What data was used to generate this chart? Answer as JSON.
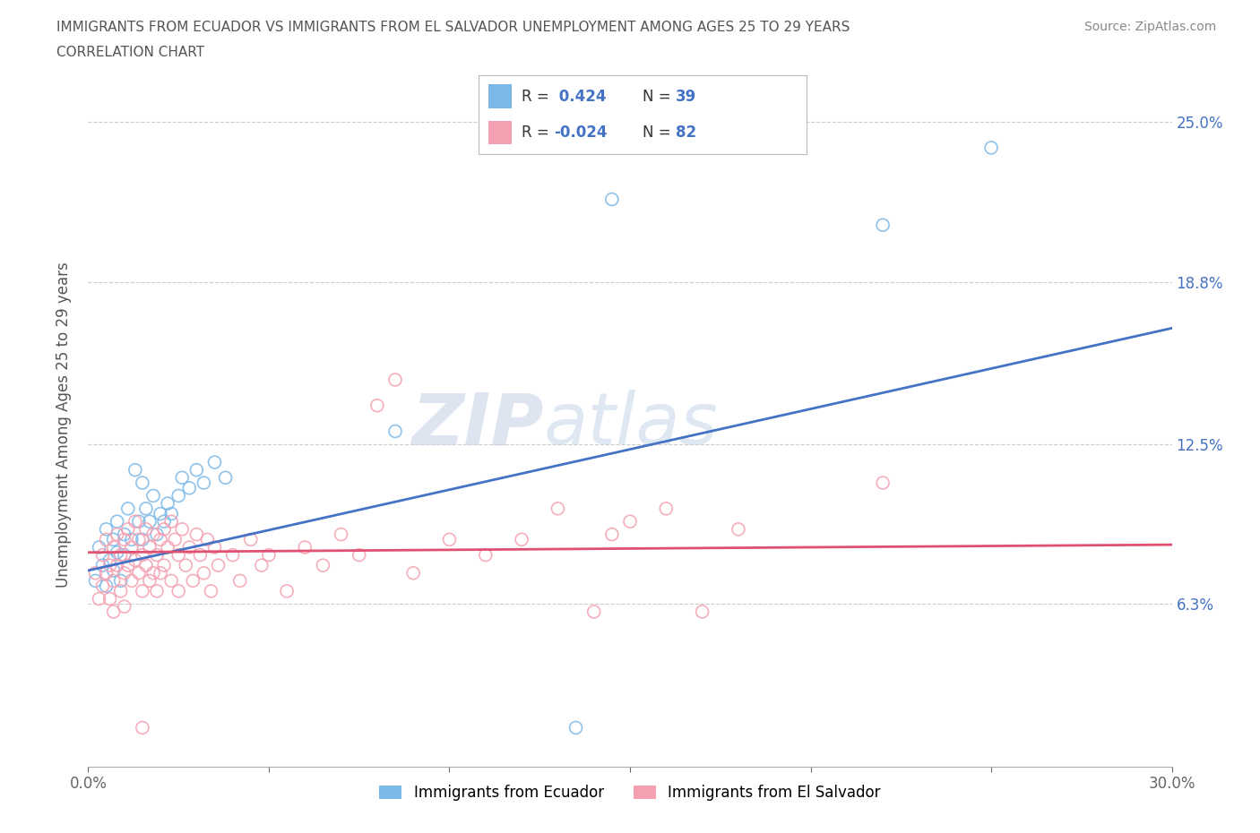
{
  "title_line1": "IMMIGRANTS FROM ECUADOR VS IMMIGRANTS FROM EL SALVADOR UNEMPLOYMENT AMONG AGES 25 TO 29 YEARS",
  "title_line2": "CORRELATION CHART",
  "source": "Source: ZipAtlas.com",
  "ylabel": "Unemployment Among Ages 25 to 29 years",
  "xlim": [
    0.0,
    0.3
  ],
  "ylim": [
    0.0,
    0.265
  ],
  "ytick_positions": [
    0.063,
    0.125,
    0.188,
    0.25
  ],
  "ytick_labels": [
    "6.3%",
    "12.5%",
    "18.8%",
    "25.0%"
  ],
  "ecuador_color": "#7ab8e8",
  "el_salvador_color": "#f4a0b0",
  "ecuador_R": 0.424,
  "ecuador_N": 39,
  "el_salvador_R": -0.024,
  "el_salvador_N": 82,
  "legend_label_ecuador": "Immigrants from Ecuador",
  "legend_label_el_salvador": "Immigrants from El Salvador",
  "trend_blue_start": 0.076,
  "trend_blue_end": 0.17,
  "trend_pink_start": 0.083,
  "trend_pink_end": 0.086,
  "ecuador_scatter": [
    [
      0.002,
      0.072
    ],
    [
      0.003,
      0.085
    ],
    [
      0.004,
      0.078
    ],
    [
      0.005,
      0.092
    ],
    [
      0.005,
      0.07
    ],
    [
      0.006,
      0.08
    ],
    [
      0.007,
      0.088
    ],
    [
      0.007,
      0.076
    ],
    [
      0.008,
      0.095
    ],
    [
      0.008,
      0.083
    ],
    [
      0.009,
      0.072
    ],
    [
      0.01,
      0.09
    ],
    [
      0.01,
      0.082
    ],
    [
      0.011,
      0.1
    ],
    [
      0.012,
      0.088
    ],
    [
      0.013,
      0.115
    ],
    [
      0.014,
      0.095
    ],
    [
      0.015,
      0.11
    ],
    [
      0.015,
      0.088
    ],
    [
      0.016,
      0.1
    ],
    [
      0.017,
      0.095
    ],
    [
      0.018,
      0.105
    ],
    [
      0.019,
      0.09
    ],
    [
      0.02,
      0.098
    ],
    [
      0.021,
      0.095
    ],
    [
      0.022,
      0.102
    ],
    [
      0.023,
      0.098
    ],
    [
      0.025,
      0.105
    ],
    [
      0.026,
      0.112
    ],
    [
      0.028,
      0.108
    ],
    [
      0.03,
      0.115
    ],
    [
      0.032,
      0.11
    ],
    [
      0.035,
      0.118
    ],
    [
      0.038,
      0.112
    ],
    [
      0.085,
      0.13
    ],
    [
      0.145,
      0.22
    ],
    [
      0.22,
      0.21
    ],
    [
      0.25,
      0.24
    ],
    [
      0.135,
      0.015
    ]
  ],
  "el_salvador_scatter": [
    [
      0.002,
      0.075
    ],
    [
      0.003,
      0.065
    ],
    [
      0.004,
      0.082
    ],
    [
      0.004,
      0.07
    ],
    [
      0.005,
      0.088
    ],
    [
      0.005,
      0.075
    ],
    [
      0.006,
      0.078
    ],
    [
      0.006,
      0.065
    ],
    [
      0.007,
      0.085
    ],
    [
      0.007,
      0.072
    ],
    [
      0.007,
      0.06
    ],
    [
      0.008,
      0.09
    ],
    [
      0.008,
      0.078
    ],
    [
      0.009,
      0.082
    ],
    [
      0.009,
      0.068
    ],
    [
      0.01,
      0.088
    ],
    [
      0.01,
      0.075
    ],
    [
      0.01,
      0.062
    ],
    [
      0.011,
      0.092
    ],
    [
      0.011,
      0.078
    ],
    [
      0.012,
      0.085
    ],
    [
      0.012,
      0.072
    ],
    [
      0.013,
      0.095
    ],
    [
      0.013,
      0.08
    ],
    [
      0.014,
      0.088
    ],
    [
      0.014,
      0.075
    ],
    [
      0.015,
      0.082
    ],
    [
      0.015,
      0.068
    ],
    [
      0.016,
      0.092
    ],
    [
      0.016,
      0.078
    ],
    [
      0.017,
      0.085
    ],
    [
      0.017,
      0.072
    ],
    [
      0.018,
      0.09
    ],
    [
      0.018,
      0.075
    ],
    [
      0.019,
      0.082
    ],
    [
      0.019,
      0.068
    ],
    [
      0.02,
      0.088
    ],
    [
      0.02,
      0.075
    ],
    [
      0.021,
      0.092
    ],
    [
      0.021,
      0.078
    ],
    [
      0.022,
      0.085
    ],
    [
      0.023,
      0.095
    ],
    [
      0.023,
      0.072
    ],
    [
      0.024,
      0.088
    ],
    [
      0.025,
      0.082
    ],
    [
      0.025,
      0.068
    ],
    [
      0.026,
      0.092
    ],
    [
      0.027,
      0.078
    ],
    [
      0.028,
      0.085
    ],
    [
      0.029,
      0.072
    ],
    [
      0.03,
      0.09
    ],
    [
      0.031,
      0.082
    ],
    [
      0.032,
      0.075
    ],
    [
      0.033,
      0.088
    ],
    [
      0.034,
      0.068
    ],
    [
      0.035,
      0.085
    ],
    [
      0.036,
      0.078
    ],
    [
      0.04,
      0.082
    ],
    [
      0.042,
      0.072
    ],
    [
      0.045,
      0.088
    ],
    [
      0.048,
      0.078
    ],
    [
      0.05,
      0.082
    ],
    [
      0.055,
      0.068
    ],
    [
      0.06,
      0.085
    ],
    [
      0.065,
      0.078
    ],
    [
      0.07,
      0.09
    ],
    [
      0.075,
      0.082
    ],
    [
      0.08,
      0.14
    ],
    [
      0.085,
      0.15
    ],
    [
      0.09,
      0.075
    ],
    [
      0.1,
      0.088
    ],
    [
      0.11,
      0.082
    ],
    [
      0.12,
      0.088
    ],
    [
      0.13,
      0.1
    ],
    [
      0.14,
      0.06
    ],
    [
      0.145,
      0.09
    ],
    [
      0.15,
      0.095
    ],
    [
      0.16,
      0.1
    ],
    [
      0.17,
      0.06
    ],
    [
      0.18,
      0.092
    ],
    [
      0.22,
      0.11
    ],
    [
      0.015,
      0.015
    ]
  ],
  "watermark_zip": "ZIP",
  "watermark_atlas": "atlas",
  "background_color": "#ffffff",
  "grid_color": "#cccccc",
  "trend_line_blue": "#4472c4",
  "trend_line_pink": "#e05070"
}
